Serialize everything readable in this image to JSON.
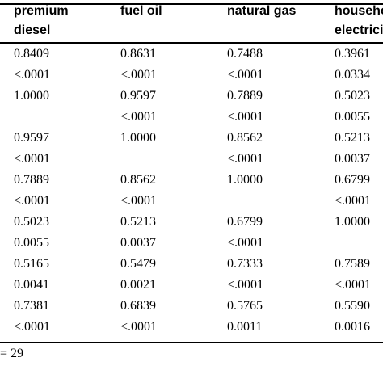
{
  "table": {
    "headers": [
      {
        "line1": "premium",
        "line2": "diesel"
      },
      {
        "line1": "fuel oil",
        "line2": ""
      },
      {
        "line1": "natural gas",
        "line2": ""
      },
      {
        "line1": "household",
        "line2": "electricity"
      }
    ],
    "rows": [
      [
        "0.8409",
        "0.8631",
        "0.7488",
        "0.3961"
      ],
      [
        "<.0001",
        "<.0001",
        "<.0001",
        "0.0334"
      ],
      [
        "1.0000",
        "0.9597",
        "0.7889",
        "0.5023"
      ],
      [
        "",
        "<.0001",
        "<.0001",
        "0.0055"
      ],
      [
        "0.9597",
        "1.0000",
        "0.8562",
        "0.5213"
      ],
      [
        "<.0001",
        "",
        "<.0001",
        "0.0037"
      ],
      [
        "0.7889",
        "0.8562",
        "1.0000",
        "0.6799"
      ],
      [
        "<.0001",
        "<.0001",
        "",
        "<.0001"
      ],
      [
        "0.5023",
        "0.5213",
        "0.6799",
        "1.0000"
      ],
      [
        "0.0055",
        "0.0037",
        "<.0001",
        ""
      ],
      [
        "0.5165",
        "0.5479",
        "0.7333",
        "0.7589"
      ],
      [
        "0.0041",
        "0.0021",
        "<.0001",
        "<.0001"
      ],
      [
        "0.7381",
        "0.6839",
        "0.5765",
        "0.5590"
      ],
      [
        "<.0001",
        "<.0001",
        "0.0011",
        "0.0016"
      ]
    ]
  },
  "footnote": "= 29"
}
